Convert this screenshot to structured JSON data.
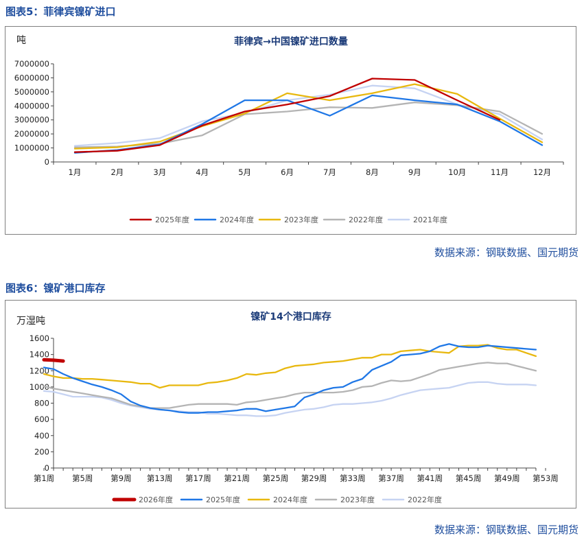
{
  "figure1": {
    "caption": "图表5：菲律宾镍矿进口",
    "source": "数据来源：钢联数据、国元期货"
  },
  "figure2": {
    "caption": "图表6：镍矿港口库存",
    "source": "数据来源：钢联数据、国元期货"
  },
  "chart_data": [
    {
      "type": "line",
      "title": "菲律宾→中国镍矿进口数量",
      "ylabel": "吨",
      "xlabel": "",
      "ylim": [
        0,
        7000000
      ],
      "yticks": [
        0,
        1000000,
        2000000,
        3000000,
        4000000,
        5000000,
        6000000,
        7000000
      ],
      "categories": [
        "1月",
        "2月",
        "3月",
        "4月",
        "5月",
        "6月",
        "7月",
        "8月",
        "9月",
        "10月",
        "11月",
        "12月"
      ],
      "legend_position": "bottom",
      "grid": false,
      "series": [
        {
          "name": "2025年度",
          "color": "#c00000",
          "values": [
            700000,
            800000,
            1200000,
            2600000,
            3600000,
            4100000,
            4700000,
            5950000,
            5850000,
            4400000,
            3000000,
            null
          ]
        },
        {
          "name": "2024年度",
          "color": "#1f77e6",
          "values": [
            650000,
            850000,
            1250000,
            2700000,
            4400000,
            4400000,
            3300000,
            4750000,
            4400000,
            4100000,
            2900000,
            1200000
          ]
        },
        {
          "name": "2023年度",
          "color": "#e8b80f",
          "values": [
            950000,
            1050000,
            1450000,
            2550000,
            3450000,
            4900000,
            4400000,
            4900000,
            5550000,
            4850000,
            3100000,
            1400000
          ]
        },
        {
          "name": "2022年度",
          "color": "#b4b4b4",
          "values": [
            1050000,
            1100000,
            1300000,
            1900000,
            3400000,
            3600000,
            3900000,
            3850000,
            4250000,
            4050000,
            3600000,
            2000000
          ]
        },
        {
          "name": "2021年度",
          "color": "#c6d3f2",
          "values": [
            1150000,
            1350000,
            1700000,
            2900000,
            3500000,
            4400000,
            4800000,
            5450000,
            5250000,
            4100000,
            3400000,
            1600000
          ]
        }
      ]
    },
    {
      "type": "line",
      "title": "镍矿14个港口库存",
      "ylabel": "万湿吨",
      "xlabel": "",
      "ylim": [
        0,
        1600
      ],
      "yticks": [
        0,
        200,
        400,
        600,
        800,
        1000,
        1200,
        1400,
        1600
      ],
      "categories": [
        "第1周",
        "第5周",
        "第9周",
        "第13周",
        "第17周",
        "第21周",
        "第25周",
        "第29周",
        "第33周",
        "第37周",
        "第41周",
        "第45周",
        "第49周",
        "第53周"
      ],
      "x_range": [
        1,
        53
      ],
      "legend_position": "bottom",
      "grid": false,
      "series": [
        {
          "name": "2026年度",
          "color": "#c00000",
          "x": [
            1,
            2,
            3
          ],
          "values": [
            1335,
            1330,
            1320
          ]
        },
        {
          "name": "2025年度",
          "color": "#1f77e6",
          "x": [
            1,
            2,
            3,
            4,
            5,
            6,
            7,
            8,
            9,
            10,
            11,
            12,
            13,
            14,
            15,
            16,
            17,
            18,
            19,
            20,
            21,
            22,
            23,
            24,
            25,
            26,
            27,
            28,
            29,
            30,
            31,
            32,
            33,
            34,
            35,
            36,
            37,
            38,
            39,
            40,
            41,
            42,
            43,
            44,
            45,
            46,
            47,
            48,
            49,
            50,
            51,
            52
          ],
          "values": [
            1240,
            1220,
            1160,
            1110,
            1070,
            1030,
            1000,
            960,
            910,
            820,
            770,
            740,
            720,
            710,
            690,
            680,
            680,
            690,
            690,
            700,
            710,
            730,
            730,
            700,
            720,
            740,
            760,
            870,
            910,
            960,
            990,
            1000,
            1060,
            1100,
            1210,
            1260,
            1310,
            1390,
            1400,
            1410,
            1440,
            1500,
            1530,
            1500,
            1490,
            1490,
            1510,
            1500,
            1490,
            1480,
            1470,
            1460
          ]
        },
        {
          "name": "2024年度",
          "color": "#e8b80f",
          "x": [
            1,
            2,
            3,
            4,
            5,
            6,
            7,
            8,
            9,
            10,
            11,
            12,
            13,
            14,
            15,
            16,
            17,
            18,
            19,
            20,
            21,
            22,
            23,
            24,
            25,
            26,
            27,
            28,
            29,
            30,
            31,
            32,
            33,
            34,
            35,
            36,
            37,
            38,
            39,
            40,
            41,
            42,
            43,
            44,
            45,
            46,
            47,
            48,
            49,
            50,
            51,
            52
          ],
          "values": [
            1160,
            1130,
            1110,
            1110,
            1100,
            1100,
            1090,
            1080,
            1070,
            1060,
            1040,
            1040,
            990,
            1020,
            1020,
            1020,
            1020,
            1050,
            1060,
            1080,
            1110,
            1160,
            1150,
            1170,
            1180,
            1230,
            1260,
            1270,
            1280,
            1300,
            1310,
            1320,
            1340,
            1360,
            1360,
            1400,
            1400,
            1440,
            1450,
            1460,
            1440,
            1430,
            1420,
            1500,
            1510,
            1510,
            1520,
            1480,
            1460,
            1460,
            1420,
            1380
          ]
        },
        {
          "name": "2023年度",
          "color": "#b4b4b4",
          "x": [
            1,
            2,
            3,
            4,
            5,
            6,
            7,
            8,
            9,
            10,
            11,
            12,
            13,
            14,
            15,
            16,
            17,
            18,
            19,
            20,
            21,
            22,
            23,
            24,
            25,
            26,
            27,
            28,
            29,
            30,
            31,
            32,
            33,
            34,
            35,
            36,
            37,
            38,
            39,
            40,
            41,
            42,
            43,
            44,
            45,
            46,
            47,
            48,
            49,
            50,
            51,
            52
          ],
          "values": [
            1010,
            980,
            960,
            940,
            920,
            900,
            880,
            860,
            820,
            780,
            760,
            740,
            740,
            740,
            760,
            780,
            790,
            790,
            790,
            790,
            780,
            810,
            820,
            840,
            860,
            880,
            910,
            930,
            930,
            930,
            930,
            940,
            960,
            1000,
            1010,
            1050,
            1080,
            1070,
            1080,
            1120,
            1160,
            1210,
            1230,
            1250,
            1270,
            1290,
            1300,
            1290,
            1290,
            1260,
            1230,
            1200
          ]
        },
        {
          "name": "2022年度",
          "color": "#c6d3f2",
          "x": [
            1,
            2,
            3,
            4,
            5,
            6,
            7,
            8,
            9,
            10,
            11,
            12,
            13,
            14,
            15,
            16,
            17,
            18,
            19,
            20,
            21,
            22,
            23,
            24,
            25,
            26,
            27,
            28,
            29,
            30,
            31,
            32,
            33,
            34,
            35,
            36,
            37,
            38,
            39,
            40,
            41,
            42,
            43,
            44,
            45,
            46,
            47,
            48,
            49,
            50,
            51,
            52
          ],
          "values": [
            950,
            940,
            910,
            880,
            880,
            880,
            870,
            840,
            800,
            770,
            750,
            730,
            720,
            710,
            700,
            690,
            690,
            670,
            670,
            660,
            650,
            650,
            640,
            640,
            650,
            680,
            700,
            720,
            730,
            750,
            780,
            790,
            790,
            800,
            810,
            830,
            860,
            900,
            930,
            960,
            970,
            980,
            990,
            1020,
            1050,
            1060,
            1060,
            1040,
            1030,
            1030,
            1030,
            1020
          ]
        }
      ]
    }
  ]
}
